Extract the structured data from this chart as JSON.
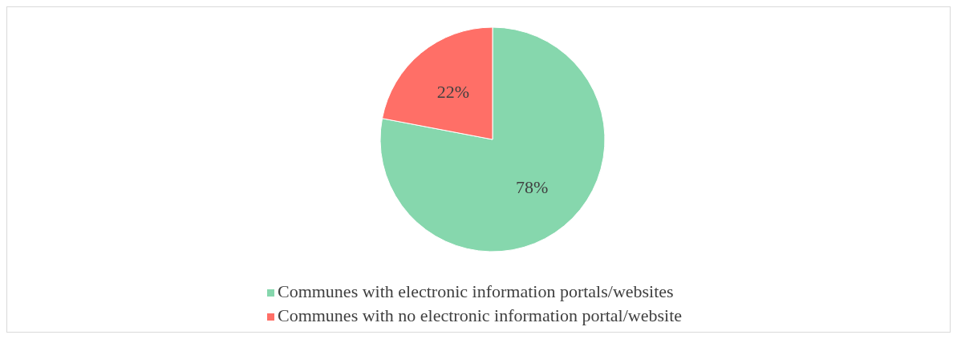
{
  "chart_data": {
    "type": "pie",
    "categories": [
      "Communes with electronic information portals/websites",
      "Communes with no electronic information portal/website"
    ],
    "values": [
      78,
      22
    ],
    "colors": [
      "#86d7ad",
      "#ff6f67"
    ],
    "value_labels": [
      "78%",
      "22%"
    ],
    "legend": "bottom"
  }
}
